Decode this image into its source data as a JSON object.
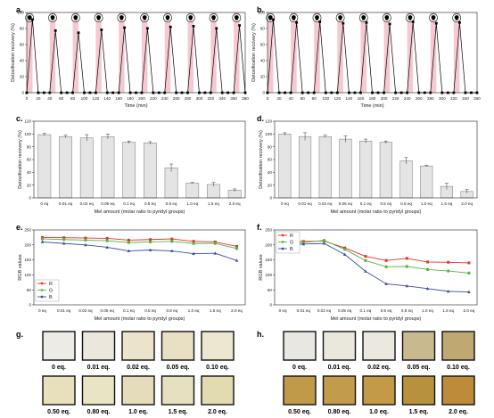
{
  "panel_labels": {
    "a": "a.",
    "b": "b.",
    "c": "c.",
    "d": "d.",
    "e": "e.",
    "f": "f.",
    "g": "g.",
    "h": "h."
  },
  "colors": {
    "pink_band": "#f6c9d2",
    "bar_fill": "#e4e4e4",
    "R": "#e8302a",
    "G": "#55b845",
    "B": "#3a4ea6"
  },
  "icons": {
    "cycle_marker": "skull-icon"
  },
  "chart_data": [
    {
      "id": "a",
      "type": "line",
      "xlabel": "Time (min)",
      "ylabel": "Detoxification recovery (%)",
      "xlim": [
        0,
        380
      ],
      "ylim": [
        0,
        100
      ],
      "xticks": [
        "0",
        "20",
        "40",
        "60",
        "80",
        "100",
        "120",
        "140",
        "160",
        "180",
        "200",
        "220",
        "240",
        "260",
        "280",
        "300",
        "320",
        "340",
        "360",
        "380"
      ],
      "yticks": [
        "0",
        "20",
        "40",
        "60",
        "80",
        "100"
      ],
      "shaded_bands": [
        [
          0,
          10
        ],
        [
          40,
          50
        ],
        [
          80,
          90
        ],
        [
          120,
          130
        ],
        [
          160,
          170
        ],
        [
          200,
          210
        ],
        [
          240,
          250
        ],
        [
          280,
          290
        ],
        [
          320,
          330
        ],
        [
          360,
          370
        ]
      ],
      "series": [
        {
          "x": [
            0,
            10,
            20,
            30,
            40,
            50,
            60,
            70,
            80,
            90,
            100,
            110,
            120,
            130,
            140,
            150,
            160,
            170,
            180,
            190,
            200,
            210,
            220,
            230,
            240,
            250,
            260,
            270,
            280,
            290,
            300,
            310,
            320,
            330,
            340,
            350,
            360,
            370,
            380
          ],
          "y": [
            0,
            100,
            0,
            0,
            0,
            85,
            0,
            0,
            0,
            82,
            0,
            0,
            0,
            86,
            0,
            0,
            0,
            89,
            0,
            0,
            0,
            88,
            0,
            0,
            0,
            90,
            0,
            0,
            0,
            91,
            0,
            0,
            0,
            88,
            0,
            0,
            0,
            92,
            0
          ]
        }
      ]
    },
    {
      "id": "b",
      "type": "line",
      "xlabel": "Time (min)",
      "ylabel": "Detoxification recovery (%)",
      "xlim": [
        0,
        360
      ],
      "ylim": [
        0,
        100
      ],
      "xticks": [
        "0",
        "20",
        "40",
        "60",
        "80",
        "100",
        "120",
        "140",
        "160",
        "180",
        "200",
        "220",
        "240",
        "260",
        "280",
        "300",
        "320",
        "340",
        "360"
      ],
      "yticks": [
        "0",
        "20",
        "40",
        "60",
        "80",
        "100"
      ],
      "shaded_bands": [
        [
          0,
          10
        ],
        [
          40,
          50
        ],
        [
          80,
          90
        ],
        [
          120,
          130
        ],
        [
          160,
          170
        ],
        [
          200,
          210
        ],
        [
          240,
          250
        ],
        [
          280,
          290
        ],
        [
          320,
          330
        ]
      ],
      "series": [
        {
          "x": [
            0,
            10,
            20,
            30,
            40,
            50,
            60,
            70,
            80,
            90,
            100,
            110,
            120,
            130,
            140,
            150,
            160,
            170,
            180,
            190,
            200,
            210,
            220,
            230,
            240,
            250,
            260,
            270,
            280,
            290,
            300,
            310,
            320,
            330,
            340,
            350,
            360
          ],
          "y": [
            0,
            100,
            0,
            0,
            0,
            96,
            0,
            0,
            0,
            97,
            0,
            0,
            0,
            95,
            0,
            0,
            0,
            96,
            0,
            0,
            0,
            94,
            0,
            0,
            0,
            97,
            0,
            0,
            0,
            95,
            0,
            0,
            0,
            96,
            0,
            0,
            0
          ]
        }
      ]
    },
    {
      "id": "c",
      "type": "bar",
      "xlabel": "Mel amount (molar ratio to pyridyl groups)",
      "ylabel": "Detoxification recovery (%)",
      "ylim": [
        0,
        120
      ],
      "yticks": [
        "0",
        "20",
        "40",
        "60",
        "80",
        "100",
        "120"
      ],
      "categories": [
        "0 eq",
        "0.01 eq",
        "0.02 eq",
        "0.05 eq",
        "0.1 eq",
        "0.5 eq",
        "0.8 eq",
        "1.0 eq",
        "1.5 eq",
        "2.0 eq"
      ],
      "values": [
        99,
        96,
        94,
        96,
        87,
        86,
        47,
        23,
        21,
        12
      ],
      "errors": [
        2,
        2,
        5,
        4,
        2,
        2,
        6,
        1,
        3,
        2
      ]
    },
    {
      "id": "d",
      "type": "bar",
      "xlabel": "Mel amount (molar ratio to pyridyl groups)",
      "ylabel": "Detoxification recovery (%)",
      "ylim": [
        0,
        120
      ],
      "yticks": [
        "0",
        "20",
        "40",
        "60",
        "80",
        "100",
        "120"
      ],
      "categories": [
        "0 eq",
        "0.01 eq",
        "0.02 eq",
        "0.05 eq",
        "0.1 eq",
        "0.5 eq",
        "0.8 eq",
        "1.0 eq",
        "1.5 eq",
        "2.0 eq"
      ],
      "values": [
        100,
        96,
        96,
        92,
        89,
        87,
        58,
        50,
        18,
        10
      ],
      "errors": [
        2,
        6,
        2,
        5,
        3,
        2,
        5,
        1,
        5,
        3
      ]
    },
    {
      "id": "e",
      "type": "line",
      "xlabel": "Mel amount (molar ratio to pyridyl groups)",
      "ylabel": "RGB values",
      "ylim": [
        0,
        250
      ],
      "yticks": [
        "0",
        "50",
        "100",
        "150",
        "200",
        "250"
      ],
      "categories": [
        "0 eq",
        "0.01 eq",
        "0.02 eq",
        "0.05 eq",
        "0.1 eq",
        "0.5 eq",
        "0.8 eq",
        "1.0 eq",
        "1.5 eq",
        "2.0 eq"
      ],
      "legend": "bottom-left",
      "series": [
        {
          "name": "R",
          "values": [
            225,
            224,
            223,
            222,
            216,
            218,
            220,
            212,
            210,
            195
          ]
        },
        {
          "name": "G",
          "values": [
            220,
            218,
            216,
            214,
            208,
            210,
            212,
            205,
            205,
            188
          ]
        },
        {
          "name": "B",
          "values": [
            210,
            205,
            200,
            192,
            180,
            183,
            180,
            171,
            172,
            148
          ]
        }
      ]
    },
    {
      "id": "f",
      "type": "line",
      "xlabel": "Mel amount (molar ratio to pyridyl groups)",
      "ylabel": "RGB values",
      "ylim": [
        0,
        250
      ],
      "yticks": [
        "0",
        "50",
        "100",
        "150",
        "200",
        "250"
      ],
      "categories": [
        "0 eq",
        "0.01 eq",
        "0.02 eq",
        "0.05 eq",
        "0.1 eq",
        "0.5 eq",
        "0.8 eq",
        "1.0 eq",
        "1.5 eq",
        "2.0 eq"
      ],
      "legend": "top-left",
      "series": [
        {
          "name": "R",
          "values": [
            210,
            212,
            213,
            190,
            162,
            148,
            155,
            143,
            142,
            140
          ]
        },
        {
          "name": "G",
          "values": [
            205,
            208,
            215,
            185,
            148,
            127,
            128,
            118,
            113,
            106
          ]
        },
        {
          "name": "B",
          "values": [
            200,
            203,
            205,
            168,
            112,
            70,
            63,
            54,
            45,
            43
          ]
        }
      ]
    }
  ],
  "swatches_g": [
    {
      "label": "0 eq.",
      "color": "#ecebe6"
    },
    {
      "label": "0.01 eq.",
      "color": "#ebe7dc"
    },
    {
      "label": "0.02 eq.",
      "color": "#ebe3cb"
    },
    {
      "label": "0.05 eq.",
      "color": "#e9e0c3"
    },
    {
      "label": "0.10 eq.",
      "color": "#ebe7d1"
    },
    {
      "label": "0.50 eq.",
      "color": "#e8dfbc"
    },
    {
      "label": "0.80 eq.",
      "color": "#e9e4c4"
    },
    {
      "label": "1.0 eq.",
      "color": "#e4dcba"
    },
    {
      "label": "1.5 eq.",
      "color": "#e6e0c0"
    },
    {
      "label": "2.0 eq.",
      "color": "#e2dbb2"
    }
  ],
  "swatches_h": [
    {
      "label": "0 eq.",
      "color": "#e8e7e2"
    },
    {
      "label": "0.01 eq.",
      "color": "#eae7dd"
    },
    {
      "label": "0.02 eq.",
      "color": "#ebe8df"
    },
    {
      "label": "0.05 eq.",
      "color": "#c9b98f"
    },
    {
      "label": "0.10 eq.",
      "color": "#bfa872"
    },
    {
      "label": "0.50 eq.",
      "color": "#c19a49"
    },
    {
      "label": "0.80 eq.",
      "color": "#c39b4c"
    },
    {
      "label": "1.0 eq.",
      "color": "#c39a48"
    },
    {
      "label": "1.5 eq.",
      "color": "#b8913e"
    },
    {
      "label": "2.0 eq.",
      "color": "#bd8c3a"
    }
  ]
}
